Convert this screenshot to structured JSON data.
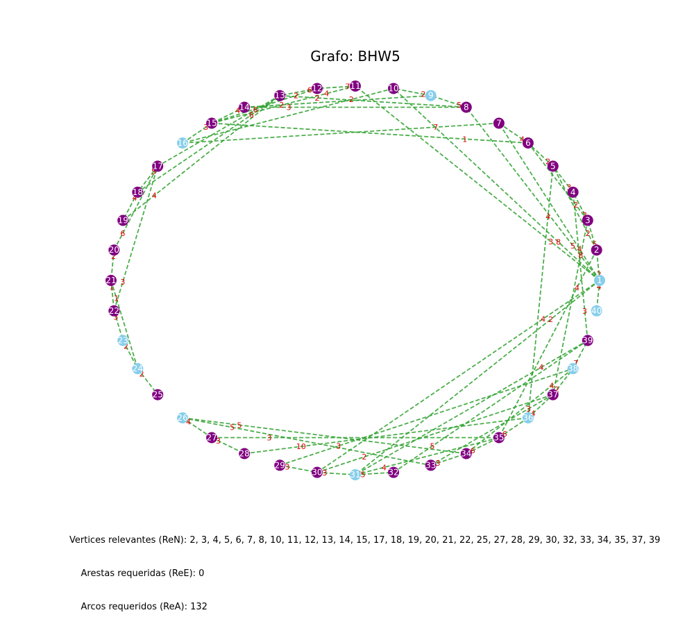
{
  "title": "Grafo: BHW5",
  "colors": {
    "required": "#800080",
    "other": "#87ceeb",
    "edge": "#2ca02c",
    "weight": "#dd0000"
  },
  "nodes": [
    {
      "id": "1",
      "required": false
    },
    {
      "id": "2",
      "required": true
    },
    {
      "id": "3",
      "required": true
    },
    {
      "id": "4",
      "required": true
    },
    {
      "id": "5",
      "required": true
    },
    {
      "id": "6",
      "required": true
    },
    {
      "id": "7",
      "required": true
    },
    {
      "id": "8",
      "required": true
    },
    {
      "id": "9",
      "required": false
    },
    {
      "id": "10",
      "required": true
    },
    {
      "id": "11",
      "required": true
    },
    {
      "id": "12",
      "required": true
    },
    {
      "id": "13",
      "required": true
    },
    {
      "id": "14",
      "required": true
    },
    {
      "id": "15",
      "required": true
    },
    {
      "id": "16",
      "required": false
    },
    {
      "id": "17",
      "required": true
    },
    {
      "id": "18",
      "required": true
    },
    {
      "id": "19",
      "required": true
    },
    {
      "id": "20",
      "required": true
    },
    {
      "id": "21",
      "required": true
    },
    {
      "id": "22",
      "required": true
    },
    {
      "id": "23",
      "required": false
    },
    {
      "id": "24",
      "required": false
    },
    {
      "id": "25",
      "required": true
    },
    {
      "id": "26",
      "required": false
    },
    {
      "id": "27",
      "required": true
    },
    {
      "id": "28",
      "required": true
    },
    {
      "id": "29",
      "required": true
    },
    {
      "id": "30",
      "required": true
    },
    {
      "id": "31",
      "required": false
    },
    {
      "id": "32",
      "required": true
    },
    {
      "id": "33",
      "required": true
    },
    {
      "id": "34",
      "required": true
    },
    {
      "id": "35",
      "required": true
    },
    {
      "id": "36",
      "required": false
    },
    {
      "id": "37",
      "required": true
    },
    {
      "id": "38",
      "required": false
    },
    {
      "id": "39",
      "required": true
    },
    {
      "id": "40",
      "required": false
    }
  ],
  "edges": [
    {
      "from": "1",
      "to": "2",
      "w": "2"
    },
    {
      "from": "1",
      "to": "40",
      "w": "4"
    },
    {
      "from": "2",
      "to": "3",
      "w": "5"
    },
    {
      "from": "3",
      "to": "4",
      "w": "2"
    },
    {
      "from": "4",
      "to": "5",
      "w": "3"
    },
    {
      "from": "5",
      "to": "6",
      "w": "2"
    },
    {
      "from": "6",
      "to": "7",
      "w": "4"
    },
    {
      "from": "8",
      "to": "9",
      "w": "5"
    },
    {
      "from": "9",
      "to": "10",
      "w": "2"
    },
    {
      "from": "11",
      "to": "12",
      "w": "7"
    },
    {
      "from": "12",
      "to": "13",
      "w": "6"
    },
    {
      "from": "14",
      "to": "15",
      "w": "4"
    },
    {
      "from": "15",
      "to": "16",
      "w": "3"
    },
    {
      "from": "17",
      "to": "18",
      "w": "5"
    },
    {
      "from": "18",
      "to": "19",
      "w": "4"
    },
    {
      "from": "20",
      "to": "21",
      "w": "2"
    },
    {
      "from": "21",
      "to": "22",
      "w": "1"
    },
    {
      "from": "22",
      "to": "23",
      "w": "3"
    },
    {
      "from": "23",
      "to": "24",
      "w": "2"
    },
    {
      "from": "24",
      "to": "25",
      "w": "2"
    },
    {
      "from": "26",
      "to": "27",
      "w": "4"
    },
    {
      "from": "27",
      "to": "28",
      "w": "3"
    },
    {
      "from": "29",
      "to": "30",
      "w": "3"
    },
    {
      "from": "30",
      "to": "31",
      "w": "3"
    },
    {
      "from": "31",
      "to": "32",
      "w": "5"
    },
    {
      "from": "33",
      "to": "34",
      "w": "3"
    },
    {
      "from": "34",
      "to": "35",
      "w": "6"
    },
    {
      "from": "35",
      "to": "36",
      "w": "6"
    },
    {
      "from": "36",
      "to": "37",
      "w": "4"
    },
    {
      "from": "37",
      "to": "38",
      "w": "2"
    },
    {
      "from": "38",
      "to": "39",
      "w": "7"
    },
    {
      "from": "39",
      "to": "4",
      "w": "3"
    },
    {
      "from": "2",
      "to": "5",
      "w": "2"
    },
    {
      "from": "3",
      "to": "6",
      "w": "2"
    },
    {
      "from": "1",
      "to": "7",
      "w": "4"
    },
    {
      "from": "1",
      "to": "8",
      "w": "5"
    },
    {
      "from": "1",
      "to": "10",
      "w": "8"
    },
    {
      "from": "1",
      "to": "11",
      "w": "3"
    },
    {
      "from": "1",
      "to": "30",
      "w": "4"
    },
    {
      "from": "1",
      "to": "31",
      "w": "2"
    },
    {
      "from": "2",
      "to": "35",
      "w": "4"
    },
    {
      "from": "3",
      "to": "37",
      "w": "8"
    },
    {
      "from": "5",
      "to": "36",
      "w": "4"
    },
    {
      "from": "39",
      "to": "31",
      "w": "4"
    },
    {
      "from": "38",
      "to": "34",
      "w": "4"
    },
    {
      "from": "37",
      "to": "33",
      "w": "3"
    },
    {
      "from": "12",
      "to": "15",
      "w": "2"
    },
    {
      "from": "13",
      "to": "17",
      "w": "6"
    },
    {
      "from": "13",
      "to": "18",
      "w": "6"
    },
    {
      "from": "10",
      "to": "16",
      "w": "2"
    },
    {
      "from": "11",
      "to": "15",
      "w": "4"
    },
    {
      "from": "14",
      "to": "8",
      "w": "3"
    },
    {
      "from": "13",
      "to": "8",
      "w": "2"
    },
    {
      "from": "6",
      "to": "15",
      "w": "1"
    },
    {
      "from": "7",
      "to": "16",
      "w": "7"
    },
    {
      "from": "19",
      "to": "13",
      "w": "4"
    },
    {
      "from": "20",
      "to": "17",
      "w": "6"
    },
    {
      "from": "21",
      "to": "24",
      "w": "1"
    },
    {
      "from": "22",
      "to": "17",
      "w": "3"
    },
    {
      "from": "26",
      "to": "34",
      "w": "5"
    },
    {
      "from": "26",
      "to": "33",
      "w": "5"
    },
    {
      "from": "27",
      "to": "35",
      "w": "3"
    },
    {
      "from": "28",
      "to": "36",
      "w": "10"
    },
    {
      "from": "29",
      "to": "38",
      "w": "3"
    },
    {
      "from": "30",
      "to": "37",
      "w": "2"
    },
    {
      "from": "32",
      "to": "39",
      "w": "5"
    },
    {
      "from": "31",
      "to": "35",
      "w": "4"
    },
    {
      "from": "14",
      "to": "9",
      "w": "2"
    }
  ],
  "stats": {
    "vertices": "Vertices relevantes (ReN): 2, 3, 4, 5, 6, 7, 8, 10, 11, 12, 13, 14, 15, 17, 18, 19, 20, 21, 22, 25, 27, 28, 29, 30, 32, 33, 34, 35, 37, 39",
    "edges": "    Arestas requeridas (ReE): 0",
    "arcs": "    Arcos requeridos (ReA): 132"
  }
}
